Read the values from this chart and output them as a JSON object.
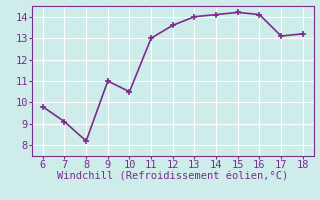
{
  "x": [
    6,
    7,
    8,
    9,
    10,
    11,
    12,
    13,
    14,
    15,
    16,
    17,
    18
  ],
  "y": [
    9.8,
    9.1,
    8.2,
    11.0,
    10.5,
    13.0,
    13.6,
    14.0,
    14.1,
    14.2,
    14.1,
    13.1,
    13.2
  ],
  "line_color": "#7B2D8B",
  "marker_color": "#7B2D8B",
  "bg_color": "#ceecea",
  "grid_color": "#ffffff",
  "xlabel": "Windchill (Refroidissement éolien,°C)",
  "xlabel_color": "#7B2D8B",
  "xlim": [
    5.5,
    18.5
  ],
  "ylim": [
    7.5,
    14.5
  ],
  "xticks": [
    6,
    7,
    8,
    9,
    10,
    11,
    12,
    13,
    14,
    15,
    16,
    17,
    18
  ],
  "yticks": [
    8,
    9,
    10,
    11,
    12,
    13,
    14
  ],
  "tick_color": "#7B2D8B",
  "tick_labelsize": 7.5,
  "xlabel_fontsize": 7.5,
  "linewidth": 1.2,
  "markersize": 4
}
